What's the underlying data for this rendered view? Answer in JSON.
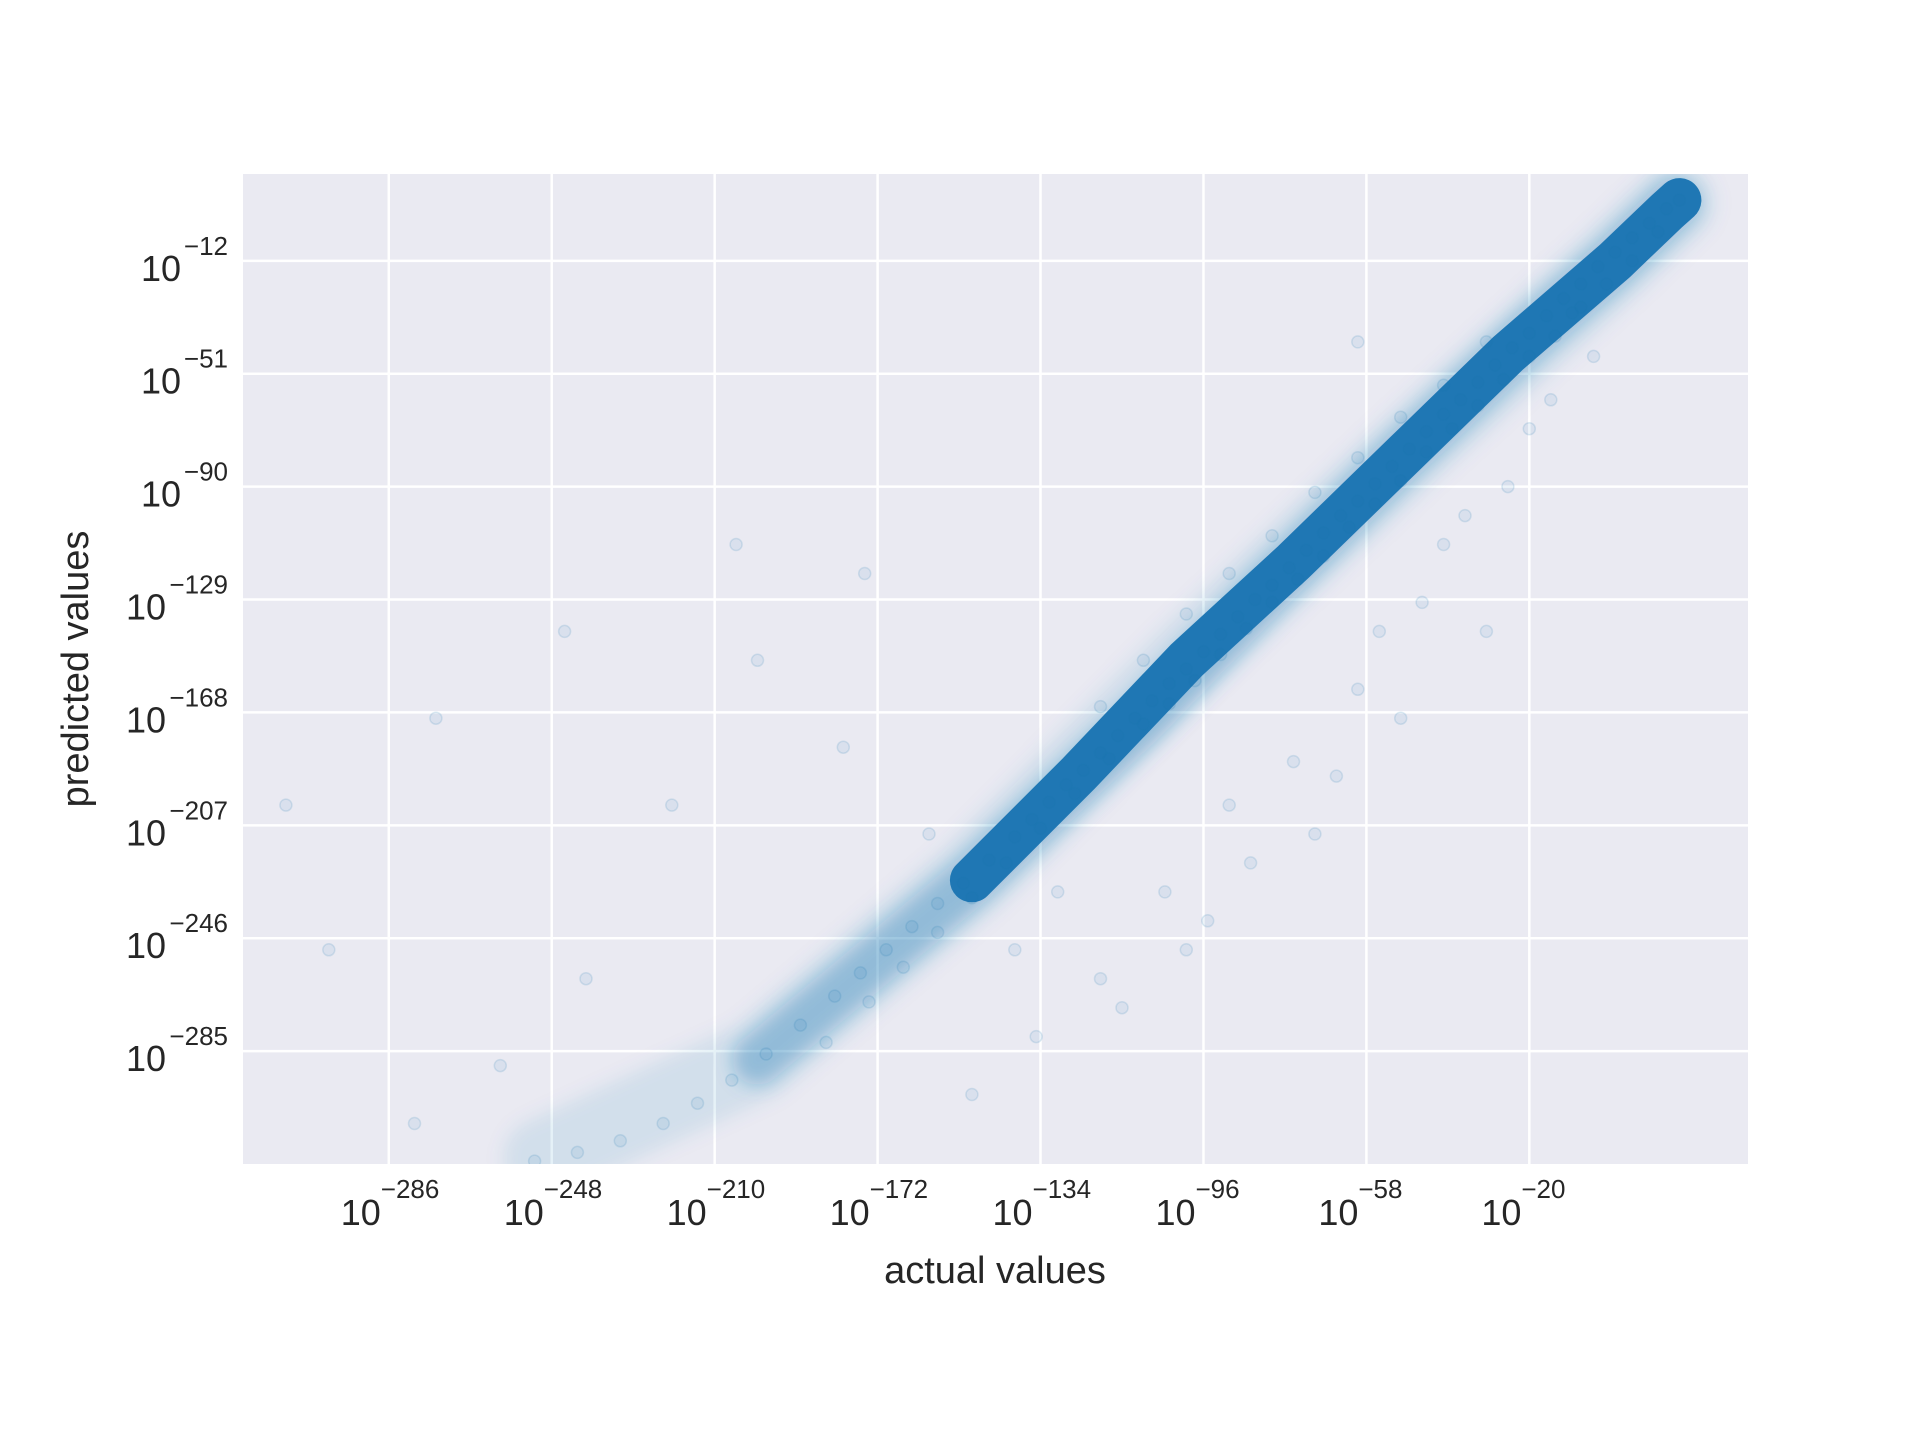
{
  "chart_data": {
    "type": "scatter",
    "title": "",
    "xlabel": "actual values",
    "ylabel": "predicted values",
    "x_scale": "log",
    "y_scale": "log",
    "xlim_exp": [
      -320,
      31
    ],
    "ylim_exp": [
      -324,
      18
    ],
    "x_ticks": [
      {
        "base": "10",
        "exp": "−286",
        "value_exp": -286
      },
      {
        "base": "10",
        "exp": "−248",
        "value_exp": -248
      },
      {
        "base": "10",
        "exp": "−210",
        "value_exp": -210
      },
      {
        "base": "10",
        "exp": "−172",
        "value_exp": -172
      },
      {
        "base": "10",
        "exp": "−134",
        "value_exp": -134
      },
      {
        "base": "10",
        "exp": "−96",
        "value_exp": -96
      },
      {
        "base": "10",
        "exp": "−58",
        "value_exp": -58
      },
      {
        "base": "10",
        "exp": "−20",
        "value_exp": -20
      }
    ],
    "y_ticks": [
      {
        "base": "10",
        "exp": "−12",
        "value_exp": -12
      },
      {
        "base": "10",
        "exp": "−51",
        "value_exp": -51
      },
      {
        "base": "10",
        "exp": "−90",
        "value_exp": -90
      },
      {
        "base": "10",
        "exp": "−129",
        "value_exp": -129
      },
      {
        "base": "10",
        "exp": "−168",
        "value_exp": -168
      },
      {
        "base": "10",
        "exp": "−207",
        "value_exp": -207
      },
      {
        "base": "10",
        "exp": "−246",
        "value_exp": -246
      },
      {
        "base": "10",
        "exp": "−285",
        "value_exp": -285
      }
    ],
    "grid": true,
    "legend": "none",
    "series": [
      {
        "color": "#1f77b4",
        "points_exp": [
          [
            15,
            9
          ],
          [
            12,
            6
          ],
          [
            8,
            1
          ],
          [
            4,
            -4
          ],
          [
            0,
            -9
          ],
          [
            -4,
            -14
          ],
          [
            -8,
            -20
          ],
          [
            -12,
            -25
          ],
          [
            -16,
            -31
          ],
          [
            -20,
            -37
          ],
          [
            -24,
            -42
          ],
          [
            -28,
            -48
          ],
          [
            -32,
            -54
          ],
          [
            -36,
            -60
          ],
          [
            -40,
            -65
          ],
          [
            -44,
            -71
          ],
          [
            -48,
            -77
          ],
          [
            -52,
            -83
          ],
          [
            -56,
            -89
          ],
          [
            -60,
            -95
          ],
          [
            -64,
            -100
          ],
          [
            -68,
            -106
          ],
          [
            -72,
            -112
          ],
          [
            -76,
            -118
          ],
          [
            -80,
            -124
          ],
          [
            -84,
            -129
          ],
          [
            -88,
            -135
          ],
          [
            -92,
            -141
          ],
          [
            -96,
            -147
          ],
          [
            -100,
            -153
          ],
          [
            -104,
            -158
          ],
          [
            -108,
            -164
          ],
          [
            -112,
            -170
          ],
          [
            -116,
            -176
          ],
          [
            -120,
            -182
          ],
          [
            -124,
            -188
          ],
          [
            -128,
            -193
          ],
          [
            -132,
            -199
          ],
          [
            -136,
            -205
          ],
          [
            -140,
            -211
          ],
          [
            -146,
            -219
          ],
          [
            -152,
            -227
          ],
          [
            -158,
            -234
          ],
          [
            -164,
            -242
          ],
          [
            -170,
            -250
          ],
          [
            -176,
            -258
          ],
          [
            -182,
            -266
          ],
          [
            -190,
            -276
          ],
          [
            -198,
            -286
          ],
          [
            -206,
            -295
          ],
          [
            -214,
            -303
          ],
          [
            -222,
            -310
          ],
          [
            -232,
            -316
          ],
          [
            -242,
            -320
          ],
          [
            -252,
            -323
          ],
          [
            10,
            -2
          ],
          [
            4,
            -12
          ],
          [
            -2,
            -20
          ],
          [
            -8,
            -28
          ],
          [
            -14,
            -38
          ],
          [
            -20,
            -45
          ],
          [
            -26,
            -53
          ],
          [
            -32,
            -62
          ],
          [
            -38,
            -70
          ],
          [
            -44,
            -78
          ],
          [
            -50,
            -88
          ],
          [
            -56,
            -96
          ],
          [
            -62,
            -104
          ],
          [
            -68,
            -114
          ],
          [
            -74,
            -122
          ],
          [
            -80,
            -130
          ],
          [
            -86,
            -139
          ],
          [
            -92,
            -148
          ],
          [
            -98,
            -157
          ],
          [
            -104,
            -165
          ],
          [
            -110,
            -172
          ],
          [
            -118,
            -184
          ],
          [
            -126,
            -196
          ],
          [
            -134,
            -208
          ],
          [
            -142,
            -220
          ],
          [
            -150,
            -232
          ],
          [
            -158,
            -244
          ],
          [
            -166,
            -256
          ],
          [
            -174,
            -268
          ],
          [
            -184,
            -282
          ],
          [
            -30,
            -40
          ],
          [
            -40,
            -55
          ],
          [
            -50,
            -66
          ],
          [
            -60,
            -80
          ],
          [
            -70,
            -92
          ],
          [
            -80,
            -107
          ],
          [
            -90,
            -120
          ],
          [
            -100,
            -134
          ],
          [
            -110,
            -150
          ],
          [
            -120,
            -166
          ],
          [
            -20,
            -70
          ],
          [
            -35,
            -100
          ],
          [
            -45,
            -130
          ],
          [
            -60,
            -160
          ],
          [
            -75,
            -185
          ],
          [
            -90,
            -200
          ],
          [
            -105,
            -230
          ],
          [
            -120,
            -260
          ],
          [
            -135,
            -280
          ],
          [
            -150,
            -300
          ],
          [
            -30,
            -140
          ],
          [
            -50,
            -170
          ],
          [
            -70,
            -210
          ],
          [
            -95,
            -240
          ],
          [
            -115,
            -270
          ],
          [
            -140,
            -250
          ],
          [
            -160,
            -210
          ],
          [
            -180,
            -180
          ],
          [
            -200,
            -150
          ],
          [
            -220,
            -200
          ],
          [
            -240,
            -260
          ],
          [
            -260,
            -290
          ],
          [
            -280,
            -310
          ],
          [
            -300,
            -250
          ],
          [
            -310,
            -200
          ],
          [
            -275,
            -170
          ],
          [
            -245,
            -140
          ],
          [
            -205,
            -110
          ],
          [
            -175,
            -120
          ],
          [
            -60,
            -40
          ],
          [
            -10,
            -30
          ],
          [
            -5,
            -45
          ],
          [
            -15,
            -60
          ],
          [
            -25,
            -90
          ],
          [
            -40,
            -110
          ],
          [
            -55,
            -140
          ],
          [
            -65,
            -190
          ],
          [
            -85,
            -220
          ],
          [
            -100,
            -250
          ],
          [
            -130,
            -230
          ]
        ]
      }
    ]
  }
}
